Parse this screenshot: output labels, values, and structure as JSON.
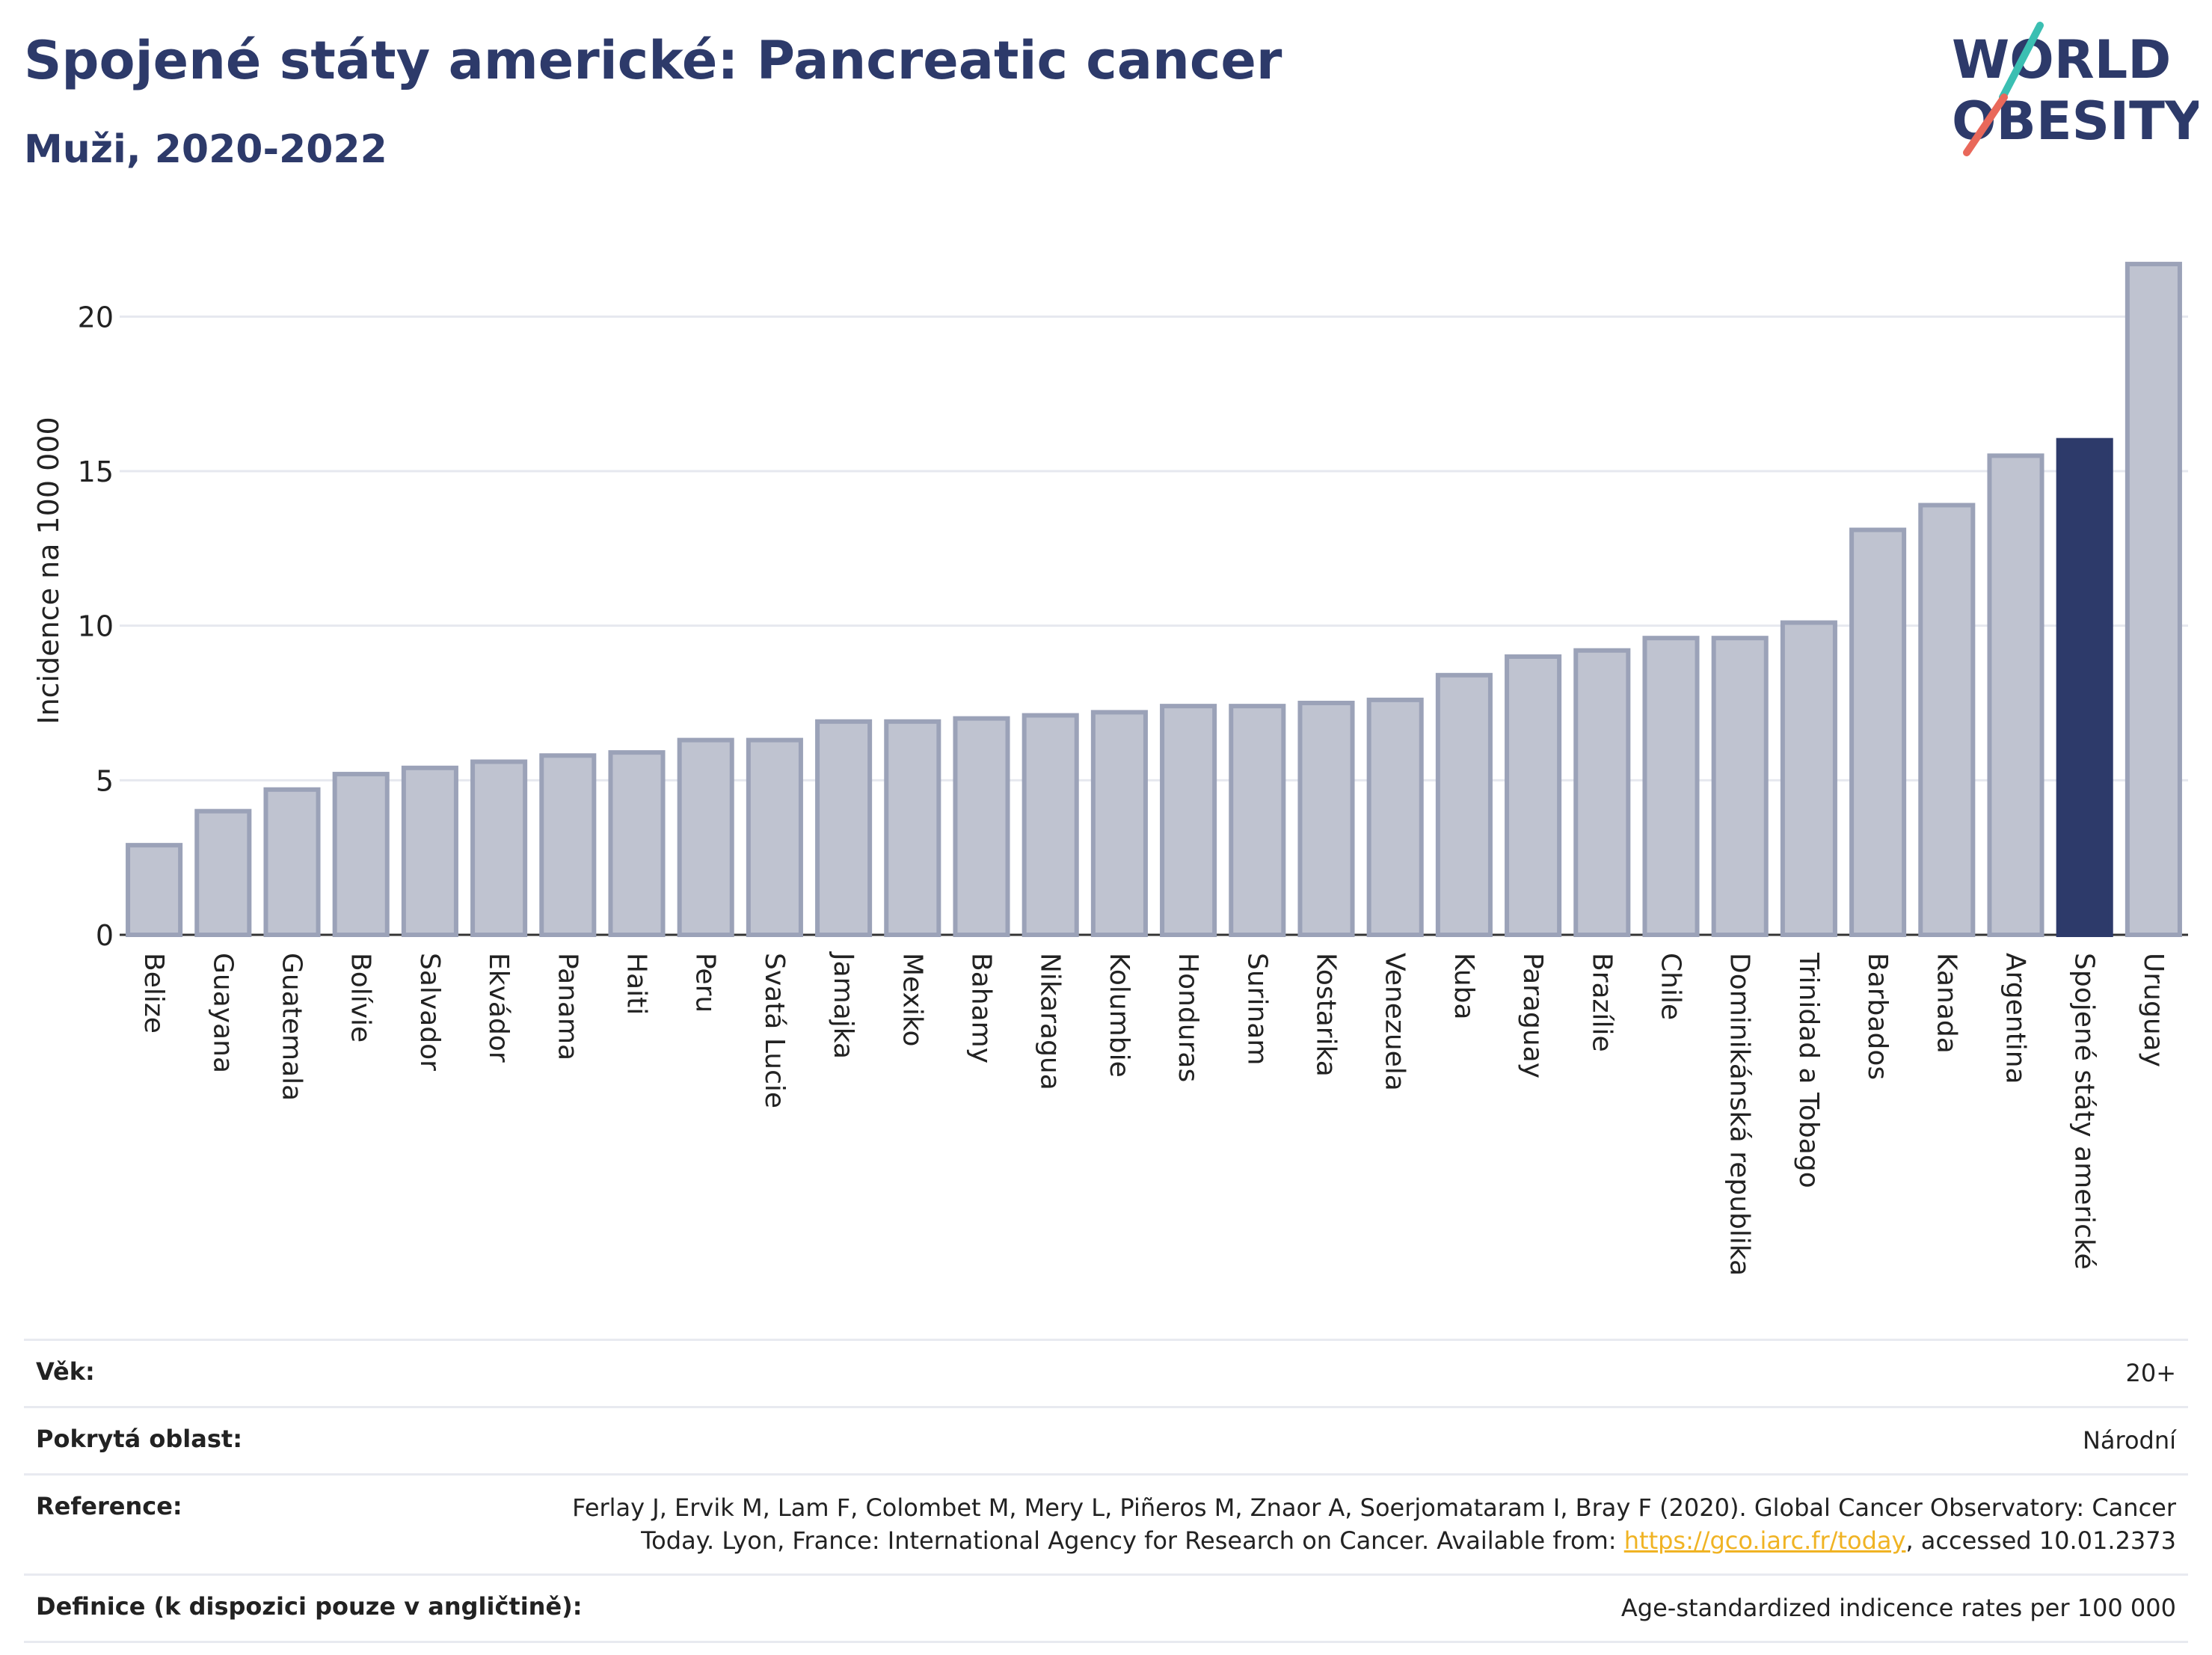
{
  "header": {
    "title": "Spojené státy americké: Pancreatic cancer",
    "subtitle": "Muži, 2020-2022"
  },
  "logo": {
    "line1": "WORLD",
    "line2": "OBESITY"
  },
  "colors": {
    "bar_default": "#bfc3d0",
    "bar_border": "#9ba2b8",
    "bar_highlight": "#2d3a6a",
    "grid": "#e6e8ef",
    "logo_text": "#2d3a6a",
    "logo_teal": "#3bbfb2",
    "logo_coral": "#e9685a"
  },
  "chart_data": {
    "type": "bar",
    "title": "",
    "xlabel": "",
    "ylabel": "Incidence na 100 000",
    "ylim": [
      0,
      22.5
    ],
    "yticks": [
      0,
      5,
      10,
      15,
      20
    ],
    "grid": true,
    "legend": "none",
    "highlight": "Spojené státy americké",
    "categories": [
      "Belize",
      "Guayana",
      "Guatemala",
      "Bolívie",
      "Salvador",
      "Ekvádor",
      "Panama",
      "Haiti",
      "Peru",
      "Svatá Lucie",
      "Jamajka",
      "Mexiko",
      "Bahamy",
      "Nikaragua",
      "Kolumbie",
      "Honduras",
      "Surinam",
      "Kostarika",
      "Venezuela",
      "Kuba",
      "Paraguay",
      "Brazílie",
      "Chile",
      "Dominikánská republika",
      "Trinidad a Tobago",
      "Barbados",
      "Kanada",
      "Argentina",
      "Spojené státy americké",
      "Uruguay"
    ],
    "values": [
      2.9,
      4.0,
      4.7,
      5.2,
      5.4,
      5.6,
      5.8,
      5.9,
      6.3,
      6.3,
      6.9,
      6.9,
      7.0,
      7.1,
      7.2,
      7.4,
      7.4,
      7.5,
      7.6,
      8.4,
      9.0,
      9.2,
      9.6,
      9.6,
      10.1,
      13.1,
      13.9,
      15.5,
      16.0,
      21.7
    ]
  },
  "meta": {
    "age_label": "Věk:",
    "age_value": "20+",
    "coverage_label": "Pokrytá oblast:",
    "coverage_value": "Národní",
    "reference_label": "Reference:",
    "reference_text": "Ferlay J, Ervik M, Lam F, Colombet M, Mery L, Piñeros M, Znaor A, Soerjomataram I, Bray F (2020). Global Cancer Observatory: Cancer Today. Lyon, France: International Agency for Research on Cancer. Available from: ",
    "reference_link": "https://gco.iarc.fr/today",
    "reference_suffix": ", accessed 10.01.2373",
    "definition_label": "Definice (k dispozici pouze v angličtině):",
    "definition_value": "Age-standardized indicence rates per 100 000"
  }
}
